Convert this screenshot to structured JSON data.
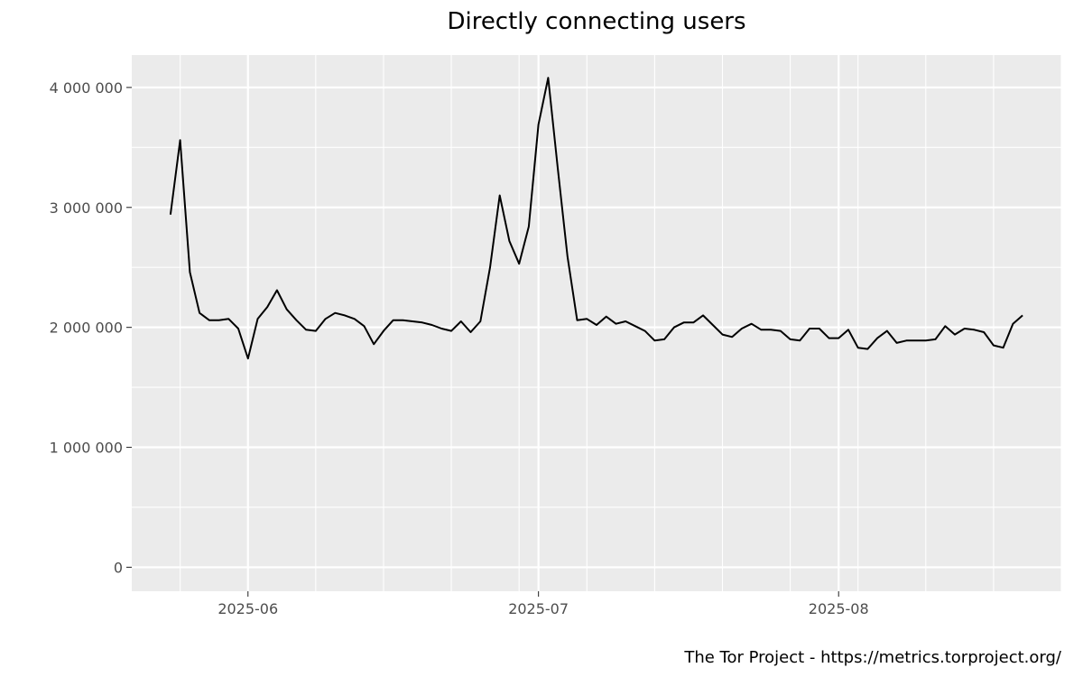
{
  "chart_data": {
    "type": "line",
    "title": "Directly connecting users",
    "xlabel": "",
    "ylabel": "",
    "caption": "The Tor Project - https://metrics.torproject.org/",
    "x_range": [
      "2025-05-20",
      "2025-08-24"
    ],
    "ylim": [
      -200000,
      4270000
    ],
    "x_ticks": [
      {
        "date": "2025-06-01",
        "label": "2025-06"
      },
      {
        "date": "2025-07-01",
        "label": "2025-07"
      },
      {
        "date": "2025-08-01",
        "label": "2025-08"
      }
    ],
    "y_ticks": [
      {
        "value": 0,
        "label": "0"
      },
      {
        "value": 1000000,
        "label": "1 000 000"
      },
      {
        "value": 2000000,
        "label": "2 000 000"
      },
      {
        "value": 3000000,
        "label": "3 000 000"
      },
      {
        "value": 4000000,
        "label": "4 000 000"
      }
    ],
    "grid": true,
    "colors": {
      "panel": "#ebebeb",
      "grid": "#ffffff",
      "line": "#000000"
    },
    "series": [
      {
        "x": [
          "2025-05-24",
          "2025-05-25",
          "2025-05-26",
          "2025-05-27",
          "2025-05-28",
          "2025-05-29",
          "2025-05-30",
          "2025-05-31",
          "2025-06-01",
          "2025-06-02",
          "2025-06-03",
          "2025-06-04",
          "2025-06-05",
          "2025-06-06",
          "2025-06-07",
          "2025-06-08",
          "2025-06-09",
          "2025-06-10",
          "2025-06-11",
          "2025-06-12",
          "2025-06-13",
          "2025-06-14",
          "2025-06-15",
          "2025-06-16",
          "2025-06-17",
          "2025-06-18",
          "2025-06-19",
          "2025-06-20",
          "2025-06-21",
          "2025-06-22",
          "2025-06-23",
          "2025-06-24",
          "2025-06-25",
          "2025-06-26",
          "2025-06-27",
          "2025-06-28",
          "2025-06-29",
          "2025-06-30",
          "2025-07-01",
          "2025-07-02",
          "2025-07-03",
          "2025-07-04",
          "2025-07-05",
          "2025-07-06",
          "2025-07-07",
          "2025-07-08",
          "2025-07-09",
          "2025-07-10",
          "2025-07-11",
          "2025-07-12",
          "2025-07-13",
          "2025-07-14",
          "2025-07-15",
          "2025-07-16",
          "2025-07-17",
          "2025-07-18",
          "2025-07-19",
          "2025-07-20",
          "2025-07-21",
          "2025-07-22",
          "2025-07-23",
          "2025-07-24",
          "2025-07-25",
          "2025-07-26",
          "2025-07-27",
          "2025-07-28",
          "2025-07-29",
          "2025-07-30",
          "2025-07-31",
          "2025-08-01",
          "2025-08-02",
          "2025-08-03",
          "2025-08-04",
          "2025-08-05",
          "2025-08-06",
          "2025-08-07",
          "2025-08-08",
          "2025-08-09",
          "2025-08-10",
          "2025-08-11",
          "2025-08-12",
          "2025-08-13",
          "2025-08-14",
          "2025-08-15",
          "2025-08-16",
          "2025-08-17",
          "2025-08-18",
          "2025-08-19",
          "2025-08-20"
        ],
        "y": [
          2940000,
          3560000,
          2460000,
          2120000,
          2060000,
          2060000,
          2070000,
          1990000,
          1740000,
          2070000,
          2170000,
          2310000,
          2150000,
          2060000,
          1980000,
          1970000,
          2070000,
          2120000,
          2100000,
          2070000,
          2010000,
          1860000,
          1970000,
          2060000,
          2060000,
          2050000,
          2040000,
          2020000,
          1990000,
          1970000,
          2050000,
          1960000,
          2050000,
          2500000,
          3100000,
          2720000,
          2530000,
          2840000,
          3690000,
          4080000,
          3320000,
          2590000,
          2060000,
          2070000,
          2020000,
          2090000,
          2030000,
          2050000,
          2010000,
          1970000,
          1890000,
          1900000,
          2000000,
          2040000,
          2040000,
          2100000,
          2020000,
          1940000,
          1920000,
          1990000,
          2030000,
          1980000,
          1980000,
          1970000,
          1900000,
          1890000,
          1990000,
          1990000,
          1910000,
          1910000,
          1980000,
          1830000,
          1820000,
          1910000,
          1970000,
          1870000,
          1890000,
          1890000,
          1890000,
          1900000,
          2010000,
          1940000,
          1990000,
          1980000,
          1960000,
          1850000,
          1830000,
          2030000,
          2100000
        ]
      }
    ]
  }
}
